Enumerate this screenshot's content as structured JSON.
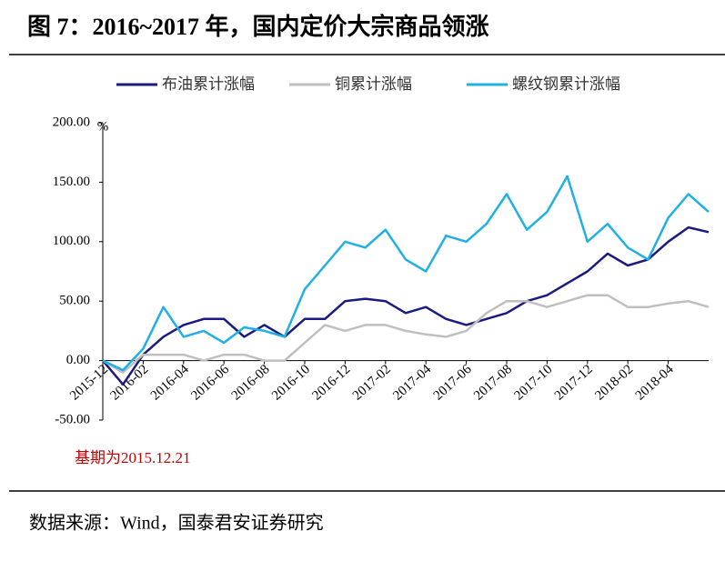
{
  "chart_data": {
    "type": "line",
    "title": "图 7：2016~2017 年，国内定价大宗商品领涨",
    "y_unit": "%",
    "annotation": "基期为2015.12.21",
    "source": "数据来源：Wind，国泰君安证券研究",
    "categories": [
      "2015-12",
      null,
      "2016-02",
      null,
      "2016-04",
      null,
      "2016-06",
      null,
      "2016-08",
      null,
      "2016-10",
      null,
      "2016-12",
      null,
      "2017-02",
      null,
      "2017-04",
      null,
      "2017-06",
      null,
      "2017-08",
      null,
      "2017-10",
      null,
      "2017-12",
      null,
      "2018-02",
      null,
      "2018-04",
      null,
      null
    ],
    "series": [
      {
        "name": "布油累计涨幅",
        "color": "#1a1a80",
        "values": [
          0,
          -20,
          5,
          20,
          30,
          35,
          35,
          20,
          30,
          20,
          35,
          35,
          50,
          52,
          50,
          40,
          45,
          35,
          30,
          35,
          40,
          50,
          55,
          65,
          75,
          90,
          80,
          85,
          100,
          112,
          108
        ]
      },
      {
        "name": "铜累计涨幅",
        "color": "#bfbfbf",
        "values": [
          0,
          -10,
          5,
          5,
          5,
          0,
          5,
          5,
          0,
          0,
          15,
          30,
          25,
          30,
          30,
          25,
          22,
          20,
          25,
          40,
          50,
          50,
          45,
          50,
          55,
          55,
          45,
          45,
          48,
          50,
          45
        ]
      },
      {
        "name": "螺纹钢累计涨幅",
        "color": "#1fb0e6",
        "values": [
          0,
          -8,
          10,
          45,
          20,
          25,
          15,
          28,
          25,
          20,
          60,
          80,
          100,
          95,
          110,
          85,
          75,
          105,
          100,
          115,
          140,
          110,
          125,
          155,
          100,
          115,
          95,
          85,
          120,
          140,
          125
        ]
      }
    ],
    "ylim": [
      -50,
      200
    ],
    "yticks": [
      {
        "value": -50,
        "label": "-50.00"
      },
      {
        "value": 0,
        "label": "0.00"
      },
      {
        "value": 50,
        "label": "50.00"
      },
      {
        "value": 100,
        "label": "100.00"
      },
      {
        "value": 150,
        "label": "150.00"
      },
      {
        "value": 200,
        "label": "200.00"
      }
    ]
  }
}
